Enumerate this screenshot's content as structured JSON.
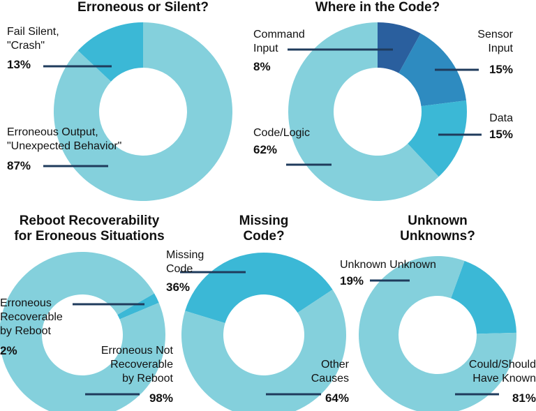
{
  "chart_data": [
    {
      "type": "pie",
      "title": "Erroneous or Silent?",
      "categories": [
        "Erroneous Output,\n\"Unexpected Behavior\"",
        "Fail Silent,\n\"Crash\""
      ],
      "values": [
        87,
        13
      ],
      "value_labels": [
        "87%",
        "13%"
      ],
      "colors": [
        "#84d0dc",
        "#3bb8d6"
      ]
    },
    {
      "type": "pie",
      "title": "Where in the Code?",
      "categories": [
        "Command\nInput",
        "Sensor\nInput",
        "Data",
        "Code/Logic"
      ],
      "values": [
        8,
        15,
        15,
        62
      ],
      "value_labels": [
        "8%",
        "15%",
        "15%",
        "62%"
      ],
      "colors": [
        "#2a5f9e",
        "#2e8bc0",
        "#3bb8d6",
        "#84d0dc"
      ]
    },
    {
      "type": "pie",
      "title": "Reboot Recoverability\nfor Eroneous Situations",
      "categories": [
        "Erroneous\nRecoverable\nby Reboot",
        "Erroneous Not\nRecoverable\nby Reboot"
      ],
      "values": [
        2,
        98
      ],
      "value_labels": [
        "2%",
        "98%"
      ],
      "colors": [
        "#3bb8d6",
        "#84d0dc"
      ]
    },
    {
      "type": "pie",
      "title": "Missing\nCode?",
      "categories": [
        "Missing\nCode",
        "Other\nCauses"
      ],
      "values": [
        36,
        64
      ],
      "value_labels": [
        "36%",
        "64%"
      ],
      "colors": [
        "#3bb8d6",
        "#84d0dc"
      ]
    },
    {
      "type": "pie",
      "title": "Unknown\nUnknowns?",
      "categories": [
        "Unknown Unknown",
        "Could/Should\nHave Known"
      ],
      "values": [
        19,
        81
      ],
      "value_labels": [
        "19%",
        "81%"
      ],
      "colors": [
        "#3bb8d6",
        "#84d0dc"
      ]
    }
  ]
}
